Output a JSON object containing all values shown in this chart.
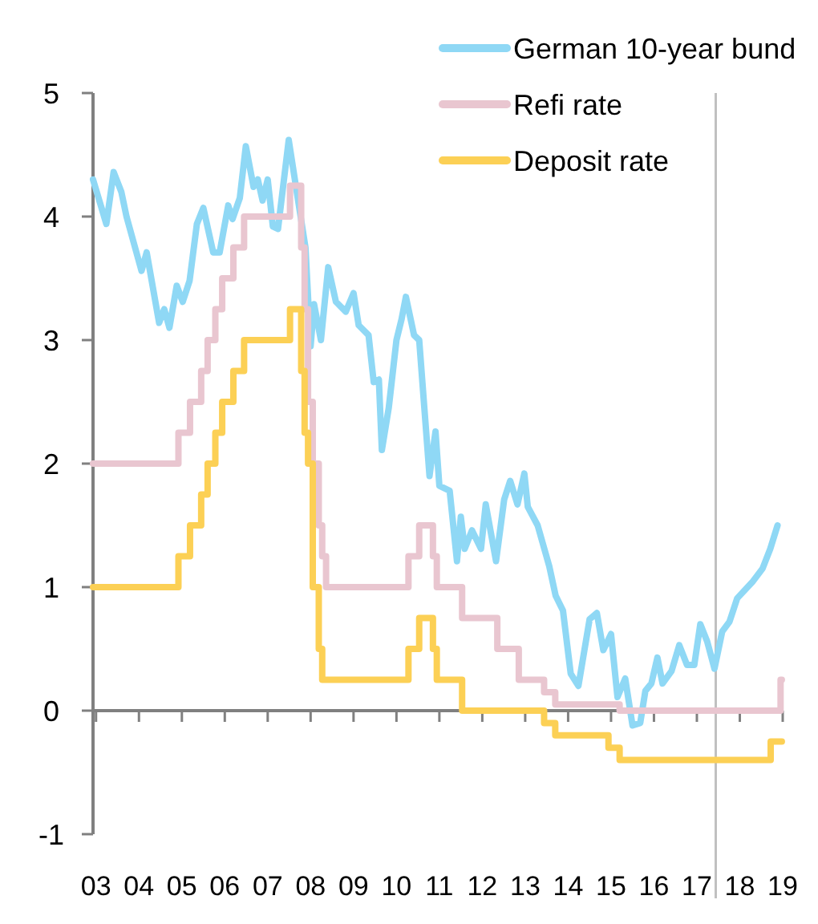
{
  "chart_data": {
    "type": "line",
    "legend": "top right",
    "xlim": [
      2002.93,
      2019
    ],
    "ylim": [
      -1,
      5
    ],
    "yticks": [
      -1,
      0,
      1,
      2,
      3,
      4,
      5
    ],
    "xticks": [
      {
        "value": 2003,
        "label": "03"
      },
      {
        "value": 2004,
        "label": "04"
      },
      {
        "value": 2005,
        "label": "05"
      },
      {
        "value": 2006,
        "label": "06"
      },
      {
        "value": 2007,
        "label": "07"
      },
      {
        "value": 2008,
        "label": "08"
      },
      {
        "value": 2009,
        "label": "09"
      },
      {
        "value": 2010,
        "label": "10"
      },
      {
        "value": 2011,
        "label": "11"
      },
      {
        "value": 2012,
        "label": "12"
      },
      {
        "value": 2013,
        "label": "13"
      },
      {
        "value": 2014,
        "label": "14"
      },
      {
        "value": 2015,
        "label": "15"
      },
      {
        "value": 2016,
        "label": "16"
      },
      {
        "value": 2017,
        "label": "17"
      },
      {
        "value": 2018,
        "label": "18"
      },
      {
        "value": 2019,
        "label": "19"
      }
    ],
    "ref_lines": [
      {
        "axis": "x",
        "value": 2017.44,
        "color": "#c0c0c0"
      }
    ],
    "series": [
      {
        "name": "German 10-year bund",
        "color": "#8fd8f5",
        "x": [
          2002.93,
          2003.24,
          2003.41,
          2003.59,
          2003.71,
          2004.06,
          2004.18,
          2004.47,
          2004.59,
          2004.71,
          2004.88,
          2005.02,
          2005.18,
          2005.35,
          2005.5,
          2005.73,
          2005.88,
          2006.08,
          2006.18,
          2006.35,
          2006.49,
          2006.67,
          2006.77,
          2006.88,
          2007.0,
          2007.12,
          2007.24,
          2007.49,
          2007.65,
          2007.88,
          2008.0,
          2008.08,
          2008.24,
          2008.41,
          2008.59,
          2008.82,
          2009.0,
          2009.12,
          2009.35,
          2009.47,
          2009.59,
          2009.66,
          2009.82,
          2010.0,
          2010.12,
          2010.22,
          2010.41,
          2010.53,
          2010.77,
          2010.91,
          2011.0,
          2011.24,
          2011.41,
          2011.5,
          2011.59,
          2011.76,
          2011.97,
          2012.08,
          2012.32,
          2012.51,
          2012.65,
          2012.82,
          2012.98,
          2013.06,
          2013.29,
          2013.56,
          2013.71,
          2013.88,
          2014.06,
          2014.24,
          2014.5,
          2014.67,
          2014.82,
          2015.0,
          2015.15,
          2015.33,
          2015.5,
          2015.68,
          2015.8,
          2015.94,
          2016.08,
          2016.2,
          2016.41,
          2016.59,
          2016.77,
          2016.94,
          2017.08,
          2017.24,
          2017.41,
          2017.59,
          2017.76,
          2017.94,
          2018.29,
          2018.53,
          2018.71,
          2018.88
        ],
        "values": [
          4.3,
          3.94,
          4.36,
          4.2,
          4.0,
          3.56,
          3.71,
          3.14,
          3.25,
          3.1,
          3.44,
          3.31,
          3.48,
          3.94,
          4.07,
          3.71,
          3.71,
          4.09,
          3.98,
          4.15,
          4.57,
          4.24,
          4.3,
          4.13,
          4.3,
          3.92,
          3.9,
          4.62,
          4.26,
          3.75,
          2.95,
          3.29,
          3.0,
          3.59,
          3.31,
          3.23,
          3.38,
          3.12,
          3.04,
          2.66,
          2.68,
          2.11,
          2.45,
          3.0,
          3.17,
          3.35,
          3.04,
          3.0,
          1.9,
          2.26,
          1.82,
          1.78,
          1.21,
          1.57,
          1.31,
          1.46,
          1.31,
          1.67,
          1.21,
          1.71,
          1.86,
          1.67,
          1.92,
          1.65,
          1.5,
          1.17,
          0.93,
          0.81,
          0.3,
          0.2,
          0.74,
          0.79,
          0.49,
          0.62,
          0.11,
          0.26,
          -0.12,
          -0.1,
          0.16,
          0.22,
          0.43,
          0.22,
          0.32,
          0.53,
          0.37,
          0.37,
          0.7,
          0.56,
          0.34,
          0.64,
          0.72,
          0.91,
          1.04,
          1.15,
          1.31,
          1.5
        ]
      },
      {
        "name": "Refi rate",
        "color": "#e9c6d0",
        "type": "step",
        "x": [
          2002.93,
          2004.92,
          2005.19,
          2005.45,
          2005.6,
          2005.78,
          2005.94,
          2006.2,
          2006.45,
          2007.52,
          2007.78,
          2007.86,
          2007.94,
          2008.05,
          2008.19,
          2008.27,
          2008.36,
          2010.28,
          2010.53,
          2010.85,
          2010.94,
          2011.53,
          2012.35,
          2012.85,
          2013.44,
          2013.7,
          2015.2,
          2018.95,
          2018.98
        ],
        "values": [
          2.0,
          2.25,
          2.5,
          2.75,
          3.0,
          3.25,
          3.5,
          3.75,
          4.0,
          4.25,
          3.75,
          3.25,
          2.5,
          2.0,
          1.5,
          1.25,
          1.0,
          1.25,
          1.5,
          1.25,
          1.0,
          0.75,
          0.5,
          0.25,
          0.15,
          0.05,
          0.0,
          0.25,
          0.25
        ]
      },
      {
        "name": "Deposit rate",
        "color": "#fcd055",
        "type": "step",
        "x": [
          2002.93,
          2004.92,
          2005.19,
          2005.45,
          2005.6,
          2005.78,
          2005.94,
          2006.2,
          2006.45,
          2007.52,
          2007.78,
          2007.86,
          2007.94,
          2008.05,
          2008.19,
          2008.27,
          2010.28,
          2010.53,
          2010.85,
          2010.94,
          2011.53,
          2013.44,
          2013.7,
          2014.94,
          2015.2,
          2018.72,
          2018.98
        ],
        "values": [
          1.0,
          1.25,
          1.5,
          1.75,
          2.0,
          2.25,
          2.5,
          2.75,
          3.0,
          3.25,
          2.75,
          2.25,
          2.0,
          1.0,
          0.5,
          0.25,
          0.5,
          0.75,
          0.5,
          0.25,
          0.0,
          -0.1,
          -0.2,
          -0.3,
          -0.4,
          -0.25,
          -0.25
        ]
      }
    ]
  }
}
